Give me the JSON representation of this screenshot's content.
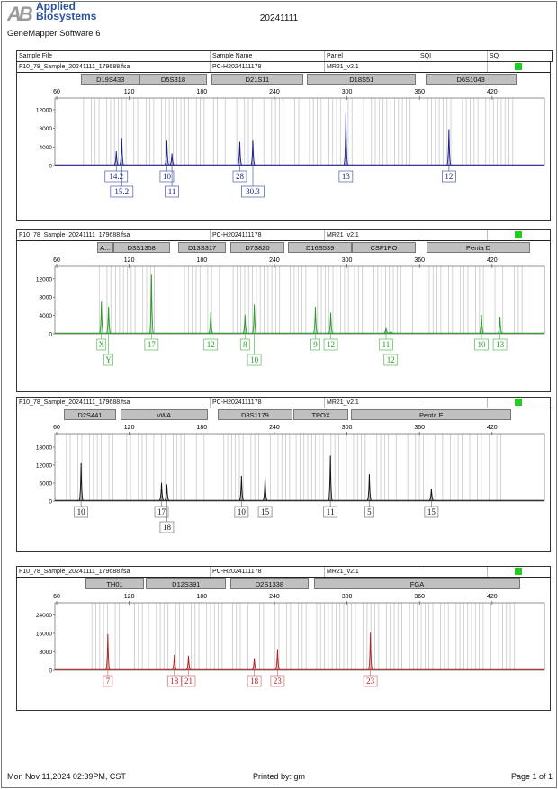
{
  "header": {
    "logo_mark": "AB",
    "logo_line1": "Applied",
    "logo_line2": "Biosystems",
    "software": "GeneMapper Software 6",
    "title": "20241111"
  },
  "columns": [
    "Sample File",
    "Sample Name",
    "Panel",
    "SQI",
    "SQ"
  ],
  "sample": {
    "file": "F10_78_Sample_20241111_179688.fsa",
    "name": "PC-H2024111178",
    "panel": "MR21_v2.1",
    "sqi": "",
    "sq_color": "#22cc22"
  },
  "footer": {
    "date": "Mon Nov 11,2024 02:39PM, CST",
    "printed_by": "Printed by: gm",
    "page": "Page 1 of 1"
  },
  "chart_data": [
    {
      "type": "line",
      "dye": "blue",
      "color": "#1c1c8e",
      "label_color": "#4a5aa8",
      "xlim": [
        58.5,
        463
      ],
      "xticks": [
        60,
        120,
        180,
        240,
        300,
        360,
        420
      ],
      "ylim": [
        0,
        14500
      ],
      "yticks": [
        0,
        4000,
        8000,
        12000
      ],
      "loci": [
        {
          "name": "D19S433",
          "range": [
            80.2,
            128.7
          ]
        },
        {
          "name": "D5S818",
          "range": [
            128.7,
            184
          ]
        },
        {
          "name": "D21S11",
          "range": [
            187.7,
            264
          ]
        },
        {
          "name": "D18S51",
          "range": [
            267,
            357.2
          ]
        },
        {
          "name": "D6S1043",
          "range": [
            364.7,
            440
          ]
        }
      ],
      "peaks": [
        {
          "size": 109.3,
          "height": 3070,
          "allele": "14.2",
          "row": 1
        },
        {
          "size": 113.8,
          "height": 5940,
          "allele": "15.2",
          "row": 2
        },
        {
          "size": 151.1,
          "height": 5350,
          "allele": "10",
          "row": 1
        },
        {
          "size": 155.3,
          "height": 2600,
          "allele": "11",
          "row": 2
        },
        {
          "size": 211.4,
          "height": 5090,
          "allele": "28",
          "row": 1
        },
        {
          "size": 222.2,
          "height": 5350,
          "allele": "30.3",
          "row": 2
        },
        {
          "size": 299.1,
          "height": 11150,
          "allele": "13",
          "row": 1
        },
        {
          "size": 384.3,
          "height": 7830,
          "allele": "12",
          "row": 1
        }
      ]
    },
    {
      "type": "line",
      "dye": "green",
      "color": "#2a9a2a",
      "label_color": "#5cb85c",
      "xlim": [
        58.5,
        463
      ],
      "xticks": [
        60,
        120,
        180,
        240,
        300,
        360,
        420
      ],
      "ylim": [
        0,
        14700
      ],
      "yticks": [
        0,
        4000,
        8000,
        12000
      ],
      "loci": [
        {
          "name": "A...",
          "range": [
            93.2,
            106.8
          ]
        },
        {
          "name": "D3S1358",
          "range": [
            106.8,
            153.4
          ]
        },
        {
          "name": "D13S317",
          "range": [
            160.5,
            200
          ]
        },
        {
          "name": "D7S820",
          "range": [
            203.9,
            247.9
          ]
        },
        {
          "name": "D16S539",
          "range": [
            251.2,
            304.3
          ]
        },
        {
          "name": "CSF1PO",
          "range": [
            304.3,
            356.6
          ]
        },
        {
          "name": "Penta D",
          "range": [
            366,
            451.3
          ]
        }
      ],
      "peaks": [
        {
          "size": 97.0,
          "height": 7000,
          "allele": "X",
          "row": 1
        },
        {
          "size": 102.9,
          "height": 5870,
          "allele": "Y",
          "row": 2
        },
        {
          "size": 138.4,
          "height": 12870,
          "allele": "17",
          "row": 1
        },
        {
          "size": 187.4,
          "height": 4670,
          "allele": "12",
          "row": 1
        },
        {
          "size": 215.7,
          "height": 4130,
          "allele": "8",
          "row": 1
        },
        {
          "size": 223.4,
          "height": 6400,
          "allele": "10",
          "row": 2
        },
        {
          "size": 273.9,
          "height": 5870,
          "allele": "9",
          "row": 1
        },
        {
          "size": 286.6,
          "height": 4600,
          "allele": "12",
          "row": 1
        },
        {
          "size": 332.3,
          "height": 1200,
          "allele": "11",
          "row": 1
        },
        {
          "size": 336.2,
          "height": 400,
          "allele": "12",
          "row": 2
        },
        {
          "size": 411.2,
          "height": 4130,
          "allele": "10",
          "row": 1
        },
        {
          "size": 426.5,
          "height": 3730,
          "allele": "13",
          "row": 1
        }
      ]
    },
    {
      "type": "line",
      "dye": "yellow",
      "color": "#111111",
      "label_color": "#777777",
      "xlim": [
        58.5,
        463
      ],
      "xticks": [
        60,
        120,
        180,
        240,
        300,
        360,
        420
      ],
      "ylim": [
        0,
        22500
      ],
      "yticks": [
        0,
        6000,
        12000,
        18000
      ],
      "loci": [
        {
          "name": "D2S441",
          "range": [
            66,
            109
          ]
        },
        {
          "name": "vWA",
          "range": [
            112.7,
            185
          ]
        },
        {
          "name": "D8S1179",
          "range": [
            193,
            255
          ]
        },
        {
          "name": "TPOX",
          "range": [
            256,
            301
          ]
        },
        {
          "name": "Penta E",
          "range": [
            303.5,
            436
          ]
        }
      ],
      "peaks": [
        {
          "size": 80.2,
          "height": 12600,
          "allele": "10",
          "row": 1
        },
        {
          "size": 146.7,
          "height": 6100,
          "allele": "17",
          "row": 1
        },
        {
          "size": 151.1,
          "height": 5600,
          "allele": "18",
          "row": 2
        },
        {
          "size": 212.8,
          "height": 8440,
          "allele": "10",
          "row": 1
        },
        {
          "size": 232.3,
          "height": 8240,
          "allele": "15",
          "row": 1
        },
        {
          "size": 286.3,
          "height": 15160,
          "allele": "11",
          "row": 1
        },
        {
          "size": 318.5,
          "height": 8950,
          "allele": "5",
          "row": 1
        },
        {
          "size": 369.8,
          "height": 4070,
          "allele": "15",
          "row": 1
        }
      ]
    },
    {
      "type": "line",
      "dye": "red",
      "color": "#b22222",
      "label_color": "#c87070",
      "xlim": [
        58.5,
        463
      ],
      "xticks": [
        60,
        120,
        180,
        240,
        300,
        360,
        420
      ],
      "ylim": [
        0,
        29250
      ],
      "yticks": [
        0,
        8000,
        16000,
        24000
      ],
      "loci": [
        {
          "name": "TH01",
          "range": [
            84,
            132
          ]
        },
        {
          "name": "D12S391",
          "range": [
            134,
            200
          ]
        },
        {
          "name": "D2S1338",
          "range": [
            203.4,
            268.4
          ]
        },
        {
          "name": "FGA",
          "range": [
            273,
            443
          ]
        }
      ],
      "peaks": [
        {
          "size": 102.3,
          "height": 15600,
          "allele": "7",
          "row": 1
        },
        {
          "size": 157.3,
          "height": 6700,
          "allele": "18",
          "row": 1
        },
        {
          "size": 169.0,
          "height": 6300,
          "allele": "21",
          "row": 1
        },
        {
          "size": 223.4,
          "height": 5250,
          "allele": "18",
          "row": 1
        },
        {
          "size": 242.6,
          "height": 9180,
          "allele": "23",
          "row": 1
        },
        {
          "size": 319.4,
          "height": 16260,
          "allele": "23",
          "row": 1
        }
      ]
    }
  ]
}
